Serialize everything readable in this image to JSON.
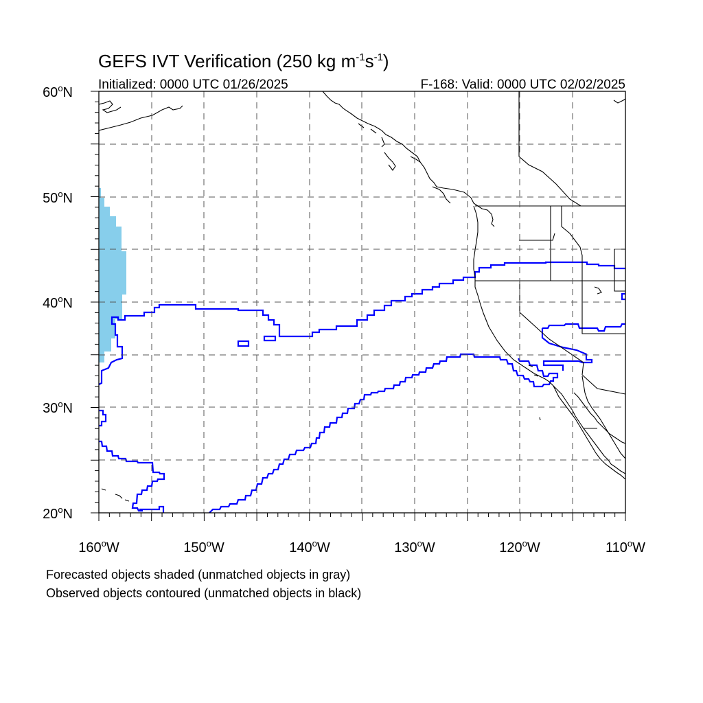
{
  "map": {
    "title_main": "GEFS IVT Verification (250 kg m",
    "title_exp1": "-1",
    "title_mid": "s",
    "title_exp2": "-1",
    "title_close": ")",
    "init_label": "Initialized: 0000 UTC 01/26/2025",
    "valid_label": "F-168: Valid: 0000 UTC 02/02/2025",
    "lat_labels": [
      {
        "deg": "60",
        "dir": "N"
      },
      {
        "deg": "50",
        "dir": "N"
      },
      {
        "deg": "40",
        "dir": "N"
      },
      {
        "deg": "30",
        "dir": "N"
      },
      {
        "deg": "20",
        "dir": "N"
      }
    ],
    "lon_labels": [
      {
        "deg": "160",
        "dir": "W"
      },
      {
        "deg": "150",
        "dir": "W"
      },
      {
        "deg": "140",
        "dir": "W"
      },
      {
        "deg": "130",
        "dir": "W"
      },
      {
        "deg": "120",
        "dir": "W"
      },
      {
        "deg": "110",
        "dir": "W"
      }
    ],
    "lat_range": [
      20,
      60
    ],
    "lon_range": [
      -160,
      -110
    ],
    "grid": true,
    "note_forecast": "Forecasted objects shaded (unmatched objects in gray)",
    "note_observed": "Observed objects contoured (unmatched objects in black)",
    "colors": {
      "forecast_fill": "#87ceeb",
      "observed_contour": "#0000ff",
      "coastline": "#000000",
      "grid": "#555555"
    }
  }
}
